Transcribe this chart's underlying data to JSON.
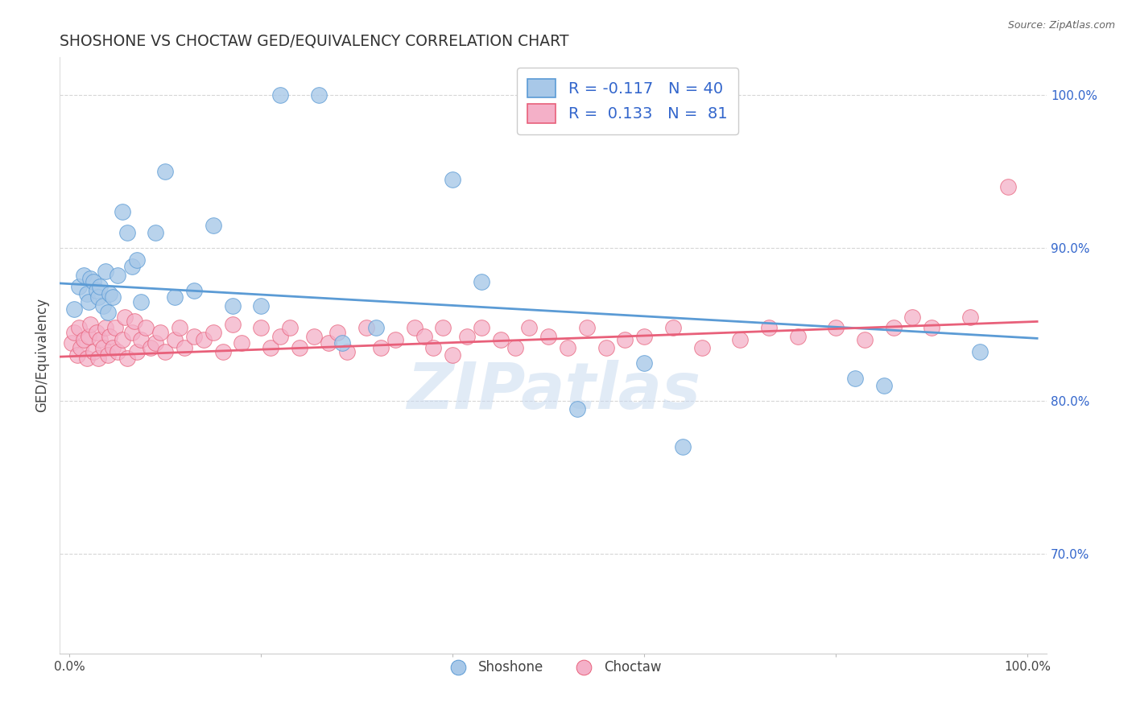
{
  "title": "SHOSHONE VS CHOCTAW GED/EQUIVALENCY CORRELATION CHART",
  "source": "Source: ZipAtlas.com",
  "ylabel": "GED/Equivalency",
  "watermark": "ZIPatlas",
  "shoshone_color": "#a8c8e8",
  "choctaw_color": "#f4b0c8",
  "line_shoshone_color": "#5b9bd5",
  "line_choctaw_color": "#e8607a",
  "background_color": "#ffffff",
  "legend_text1": "R = -0.117   N = 40",
  "legend_text2": "R =  0.133   N =  81",
  "shoshone_x": [
    0.005,
    0.01,
    0.015,
    0.018,
    0.02,
    0.022,
    0.025,
    0.028,
    0.03,
    0.032,
    0.035,
    0.038,
    0.04,
    0.042,
    0.045,
    0.05,
    0.055,
    0.06,
    0.065,
    0.07,
    0.075,
    0.09,
    0.1,
    0.11,
    0.13,
    0.15,
    0.17,
    0.2,
    0.22,
    0.26,
    0.285,
    0.32,
    0.4,
    0.43,
    0.53,
    0.6,
    0.64,
    0.82,
    0.85,
    0.95
  ],
  "shoshone_y": [
    0.86,
    0.875,
    0.882,
    0.87,
    0.865,
    0.88,
    0.878,
    0.872,
    0.868,
    0.875,
    0.862,
    0.885,
    0.858,
    0.87,
    0.868,
    0.882,
    0.924,
    0.91,
    0.888,
    0.892,
    0.865,
    0.91,
    0.95,
    0.868,
    0.872,
    0.915,
    0.862,
    0.862,
    1.0,
    1.0,
    0.838,
    0.848,
    0.945,
    0.878,
    0.795,
    0.825,
    0.77,
    0.815,
    0.81,
    0.832
  ],
  "choctaw_x": [
    0.002,
    0.005,
    0.008,
    0.01,
    0.012,
    0.015,
    0.018,
    0.02,
    0.022,
    0.025,
    0.028,
    0.03,
    0.032,
    0.035,
    0.038,
    0.04,
    0.042,
    0.045,
    0.048,
    0.05,
    0.055,
    0.058,
    0.06,
    0.065,
    0.068,
    0.07,
    0.075,
    0.08,
    0.085,
    0.09,
    0.095,
    0.1,
    0.11,
    0.115,
    0.12,
    0.13,
    0.14,
    0.15,
    0.16,
    0.17,
    0.18,
    0.2,
    0.21,
    0.22,
    0.23,
    0.24,
    0.255,
    0.27,
    0.28,
    0.29,
    0.31,
    0.325,
    0.34,
    0.36,
    0.37,
    0.38,
    0.39,
    0.4,
    0.415,
    0.43,
    0.45,
    0.465,
    0.48,
    0.5,
    0.52,
    0.54,
    0.56,
    0.58,
    0.6,
    0.63,
    0.66,
    0.7,
    0.73,
    0.76,
    0.8,
    0.83,
    0.86,
    0.88,
    0.9,
    0.94,
    0.98
  ],
  "choctaw_y": [
    0.838,
    0.845,
    0.83,
    0.848,
    0.835,
    0.84,
    0.828,
    0.842,
    0.85,
    0.832,
    0.845,
    0.828,
    0.84,
    0.835,
    0.848,
    0.83,
    0.842,
    0.835,
    0.848,
    0.832,
    0.84,
    0.855,
    0.828,
    0.845,
    0.852,
    0.832,
    0.84,
    0.848,
    0.835,
    0.838,
    0.845,
    0.832,
    0.84,
    0.848,
    0.835,
    0.842,
    0.84,
    0.845,
    0.832,
    0.85,
    0.838,
    0.848,
    0.835,
    0.842,
    0.848,
    0.835,
    0.842,
    0.838,
    0.845,
    0.832,
    0.848,
    0.835,
    0.84,
    0.848,
    0.842,
    0.835,
    0.848,
    0.83,
    0.842,
    0.848,
    0.84,
    0.835,
    0.848,
    0.842,
    0.835,
    0.848,
    0.835,
    0.84,
    0.842,
    0.848,
    0.835,
    0.84,
    0.848,
    0.842,
    0.848,
    0.84,
    0.848,
    0.855,
    0.848,
    0.855,
    0.94
  ],
  "ytick_vals": [
    0.7,
    0.8,
    0.9,
    1.0
  ],
  "ytick_labels": [
    "70.0%",
    "80.0%",
    "90.0%",
    "100.0%"
  ]
}
